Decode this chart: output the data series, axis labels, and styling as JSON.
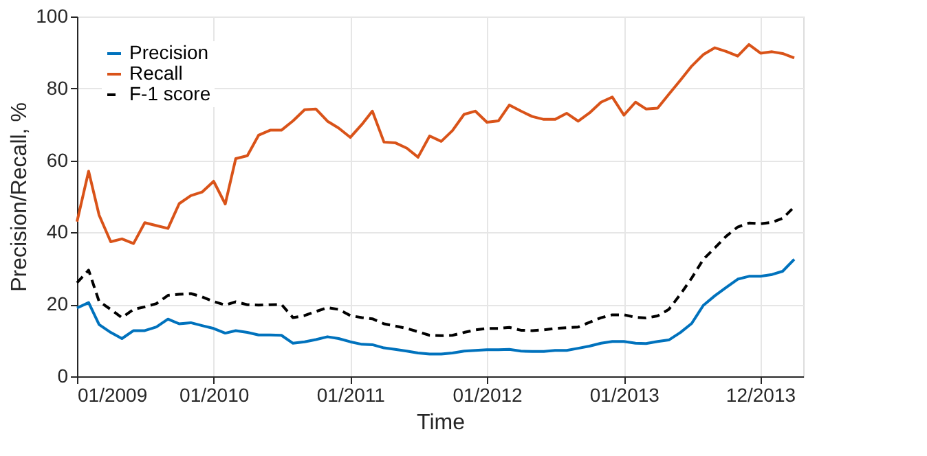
{
  "chart_data": {
    "type": "line",
    "xlabel": "Time",
    "ylabel": "Precision/Recall, %",
    "x": [
      "2009-01",
      "2009-02",
      "2009-03",
      "2009-04",
      "2009-05",
      "2009-06",
      "2009-07",
      "2009-08",
      "2009-09",
      "2009-10",
      "2009-11",
      "2009-12",
      "2010-01",
      "2010-02",
      "2010-03",
      "2010-04",
      "2010-05",
      "2010-06",
      "2010-07",
      "2010-08",
      "2010-09",
      "2010-10",
      "2010-11",
      "2010-12",
      "2011-01",
      "2011-02",
      "2011-03",
      "2011-04",
      "2011-05",
      "2011-06",
      "2011-07",
      "2011-08",
      "2011-09",
      "2011-10",
      "2011-11",
      "2011-12",
      "2012-01",
      "2012-02",
      "2012-03",
      "2012-04",
      "2012-05",
      "2012-06",
      "2012-07",
      "2012-08",
      "2012-09",
      "2012-10",
      "2012-11",
      "2012-12",
      "2013-01",
      "2013-02",
      "2013-03",
      "2013-04",
      "2013-05",
      "2013-06",
      "2013-07",
      "2013-08",
      "2013-09",
      "2013-10",
      "2013-11",
      "2013-12",
      "2014-01",
      "2014-02",
      "2014-03",
      "2014-04"
    ],
    "series": [
      {
        "name": "Precision",
        "color": "#0072bd",
        "line_style": "solid",
        "values": [
          19,
          20.5,
          14.4,
          12.2,
          10.5,
          12.7,
          12.7,
          13.7,
          15.9,
          14.6,
          14.9,
          14.1,
          13.3,
          12,
          12.7,
          12.2,
          11.5,
          11.5,
          11.4,
          9.2,
          9.6,
          10.2,
          11,
          10.5,
          9.6,
          8.9,
          8.8,
          7.9,
          7.5,
          7,
          6.5,
          6.2,
          6.2,
          6.5,
          7,
          7.2,
          7.4,
          7.4,
          7.5,
          7,
          6.9,
          6.9,
          7.2,
          7.2,
          7.8,
          8.4,
          9.2,
          9.7,
          9.7,
          9.2,
          9.1,
          9.7,
          10.1,
          12.2,
          14.7,
          19.7,
          22.4,
          24.7,
          27,
          27.8,
          27.8,
          28.3,
          29.2,
          32.5
        ]
      },
      {
        "name": "Recall",
        "color": "#d95319",
        "line_style": "solid",
        "values": [
          43,
          57,
          44.8,
          37.4,
          38.2,
          36.9,
          42.7,
          41.9,
          41.1,
          48,
          50.2,
          51.2,
          54.2,
          47.9,
          60.5,
          61.3,
          67,
          68.4,
          68.4,
          71,
          74.1,
          74.3,
          70.9,
          69,
          66.4,
          70,
          73.7,
          65.1,
          64.9,
          63.4,
          60.9,
          66.8,
          65.3,
          68.3,
          72.8,
          73.7,
          70.6,
          71,
          75.4,
          73.7,
          72.2,
          71.4,
          71.4,
          73.1,
          70.9,
          73.2,
          76.2,
          77.6,
          72.6,
          76.2,
          74.3,
          74.5,
          78.4,
          82.3,
          86.2,
          89.4,
          91.3,
          90.3,
          89,
          92.2,
          89.8,
          90.2,
          89.7,
          88.5
        ]
      },
      {
        "name": "F-1 score",
        "color": "#000000",
        "line_style": "dashed",
        "values": [
          26,
          29.5,
          20.8,
          18.6,
          16.3,
          18.6,
          19.3,
          20.2,
          22.5,
          22.8,
          23,
          22.1,
          20.8,
          19.8,
          20.7,
          19.9,
          19.8,
          19.9,
          20,
          16.3,
          16.9,
          18,
          19.1,
          18.6,
          16.9,
          16.3,
          16,
          14.6,
          14,
          13.3,
          12.4,
          11.4,
          11.3,
          11.4,
          12.2,
          12.9,
          13.3,
          13.3,
          13.6,
          12.8,
          12.7,
          12.9,
          13.3,
          13.5,
          13.7,
          15,
          16.3,
          17.1,
          17.1,
          16.4,
          16.2,
          16.8,
          18.6,
          22.8,
          27.3,
          32.5,
          35.7,
          38.9,
          41.5,
          42.6,
          42.4,
          42.8,
          43.9,
          47.1
        ]
      }
    ],
    "xlim": [
      "2009-01-01",
      "2014-04-25"
    ],
    "xticks": [
      {
        "value": "2009-01",
        "label": "01/2009"
      },
      {
        "value": "2010-01",
        "label": "01/2010"
      },
      {
        "value": "2011-01",
        "label": "01/2011"
      },
      {
        "value": "2012-01",
        "label": "01/2012"
      },
      {
        "value": "2013-01",
        "label": "01/2013"
      },
      {
        "value": "2013-12-31",
        "label": "12/2013"
      }
    ],
    "ylim": [
      0,
      100
    ],
    "yticks": [
      0,
      20,
      40,
      60,
      80,
      100
    ],
    "grid": true,
    "legend": "top left"
  }
}
